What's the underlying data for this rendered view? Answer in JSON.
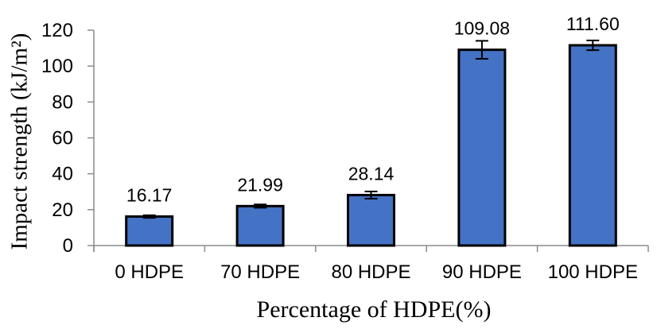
{
  "chart_data": {
    "type": "bar",
    "title": "",
    "categories": [
      "0 HDPE",
      "70 HDPE",
      "80 HDPE",
      "90 HDPE",
      "100 HDPE"
    ],
    "values": [
      16.17,
      21.99,
      28.14,
      109.08,
      111.6
    ],
    "data_labels": [
      "16.17",
      "21.99",
      "28.14",
      "109.08",
      "111.60"
    ],
    "error_values": [
      0.7,
      0.9,
      2.0,
      5.0,
      2.7
    ],
    "xlabel": "Percentage of HDPE(%)",
    "ylabel": "Impact strength (kJ/m²)",
    "ylim": [
      0,
      120
    ],
    "yticks": [
      0,
      20,
      40,
      60,
      80,
      100,
      120
    ],
    "grid": false,
    "legend": "none",
    "bar_color": "#4472C4",
    "bar_border_color": "#000000",
    "error_bar_color": "#000000",
    "axis_color": "#8C8C8C",
    "text_color": "#000000"
  }
}
